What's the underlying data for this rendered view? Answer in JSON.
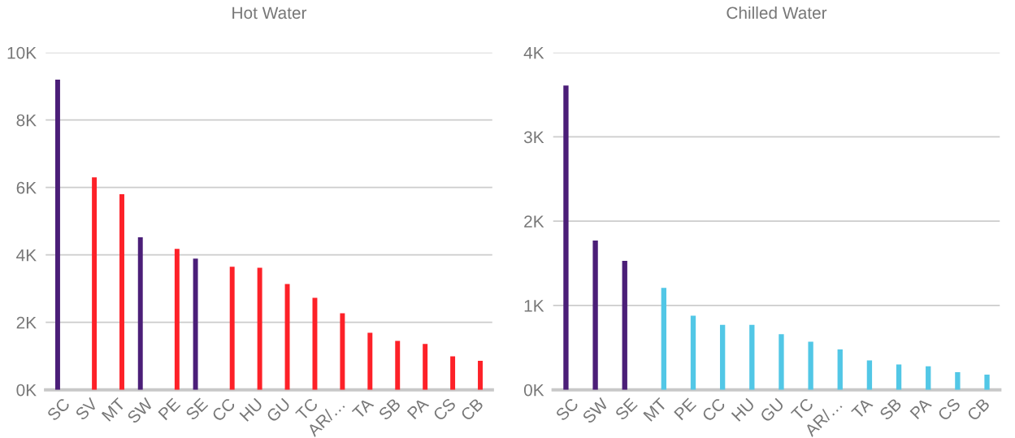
{
  "chart_data": [
    {
      "type": "bar",
      "title": "Hot Water",
      "categories": [
        "SC",
        "SV",
        "MT",
        "SW",
        "PE",
        "SE",
        "CC",
        "HU",
        "GU",
        "TC",
        "AR/…",
        "TA",
        "SB",
        "PA",
        "CS",
        "CB"
      ],
      "series": [
        {
          "color": "#4b1e78",
          "values": [
            9200,
            null,
            null,
            4520,
            null,
            3890,
            null,
            null,
            null,
            null,
            null,
            null,
            null,
            null,
            null,
            null
          ]
        },
        {
          "color": "#fd2128",
          "values": [
            null,
            6300,
            5800,
            null,
            4180,
            null,
            3650,
            3620,
            3140,
            2730,
            2270,
            1690,
            1450,
            1360,
            990,
            860
          ]
        }
      ],
      "ylim": [
        0,
        10000
      ],
      "yticks": [
        {
          "value": 0,
          "label": "0K"
        },
        {
          "value": 2000,
          "label": "2K"
        },
        {
          "value": 4000,
          "label": "4K"
        },
        {
          "value": 6000,
          "label": "6K"
        },
        {
          "value": 8000,
          "label": "8K"
        },
        {
          "value": 10000,
          "label": "10K"
        }
      ],
      "grid": "y"
    },
    {
      "type": "bar",
      "title": "Chilled Water",
      "categories": [
        "SC",
        "SW",
        "SE",
        "MT",
        "PE",
        "CC",
        "HU",
        "GU",
        "TC",
        "AR/…",
        "TA",
        "SB",
        "PA",
        "CS",
        "CB"
      ],
      "series": [
        {
          "color": "#4b1e78",
          "values": [
            3610,
            1770,
            1530,
            null,
            null,
            null,
            null,
            null,
            null,
            null,
            null,
            null,
            null,
            null,
            null
          ]
        },
        {
          "color": "#52c7e6",
          "values": [
            null,
            null,
            null,
            1210,
            880,
            770,
            770,
            660,
            570,
            480,
            350,
            300,
            280,
            210,
            180
          ]
        }
      ],
      "ylim": [
        0,
        4000
      ],
      "yticks": [
        {
          "value": 0,
          "label": "0K"
        },
        {
          "value": 1000,
          "label": "1K"
        },
        {
          "value": 2000,
          "label": "2K"
        },
        {
          "value": 3000,
          "label": "3K"
        },
        {
          "value": 4000,
          "label": "4K"
        }
      ],
      "grid": "y"
    }
  ]
}
